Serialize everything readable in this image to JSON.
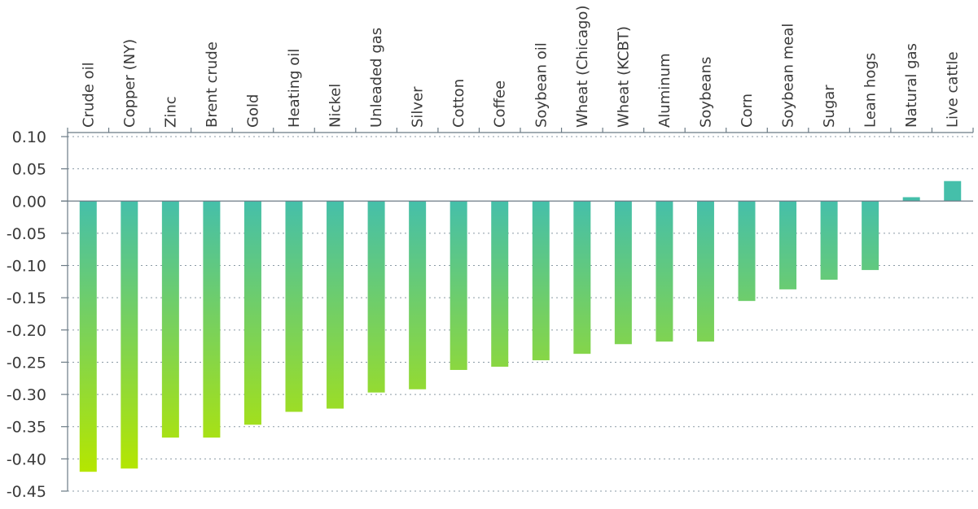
{
  "chart_data": {
    "type": "bar",
    "title": "",
    "xlabel": "",
    "ylabel": "",
    "categories": [
      "Crude oil",
      "Copper (NY)",
      "Zinc",
      "Brent crude",
      "Gold",
      "Heating oil",
      "Nickel",
      "Unleaded gas",
      "Silver",
      "Cotton",
      "Coffee",
      "Soybean oil",
      "Wheat (Chicago)",
      "Wheat (KCBT)",
      "Aluminum",
      "Soybeans",
      "Corn",
      "Soybean meal",
      "Sugar",
      "Lean hogs",
      "Natural gas",
      "Live cattle"
    ],
    "values": [
      -0.42,
      -0.415,
      -0.367,
      -0.367,
      -0.347,
      -0.327,
      -0.322,
      -0.297,
      -0.292,
      -0.262,
      -0.257,
      -0.247,
      -0.237,
      -0.222,
      -0.218,
      -0.218,
      -0.155,
      -0.137,
      -0.122,
      -0.107,
      0.006,
      0.031
    ],
    "ylim": [
      -0.45,
      0.1
    ],
    "yticks": [
      "0.10",
      "0.05",
      "0.00",
      "-0.05",
      "-0.10",
      "-0.15",
      "-0.20",
      "-0.25",
      "-0.30",
      "-0.35",
      "-0.40",
      "-0.45"
    ],
    "grid": true,
    "x_axis_position": "top",
    "colors": {
      "bar_top": "#45bfaa",
      "bar_bottom": "#b5e600",
      "axis": "#6b7a85",
      "grid": "#8a9aa5",
      "text": "#3a3a3a"
    }
  }
}
